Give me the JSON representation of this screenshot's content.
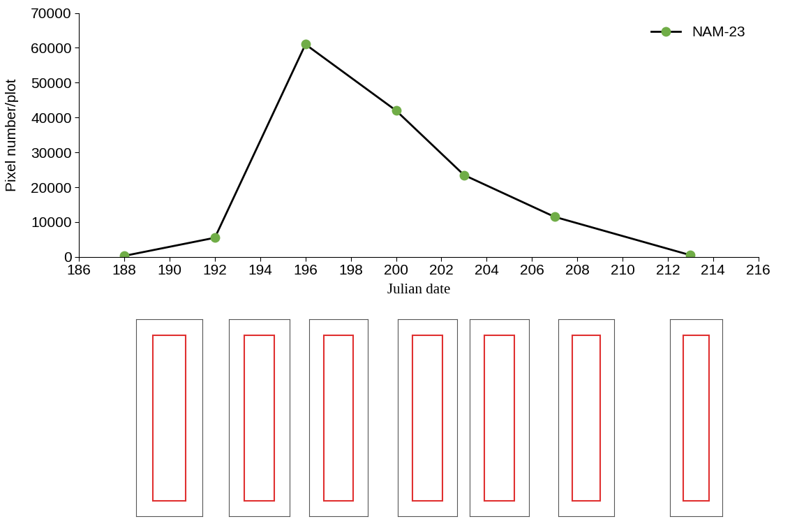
{
  "chart_data": {
    "type": "line",
    "x_label": "Julian date",
    "y_label": "Pixel number/plot",
    "x": [
      188,
      192,
      196,
      200,
      203,
      207,
      213
    ],
    "series": [
      {
        "name": "NAM-23",
        "color": "#000000",
        "marker_color": "#70ad47",
        "marker": "o",
        "line_style": "solid",
        "values": [
          300,
          5500,
          61000,
          42000,
          23500,
          11500,
          500
        ]
      }
    ],
    "xlim": [
      186,
      216
    ],
    "xticks": [
      186,
      188,
      190,
      192,
      194,
      196,
      198,
      200,
      202,
      204,
      206,
      208,
      210,
      212,
      214,
      216
    ],
    "ylim": [
      0,
      70000
    ],
    "yticks": [
      0,
      10000,
      20000,
      30000,
      40000,
      50000,
      60000,
      70000
    ],
    "grid": false,
    "legend": "upper right"
  }
}
